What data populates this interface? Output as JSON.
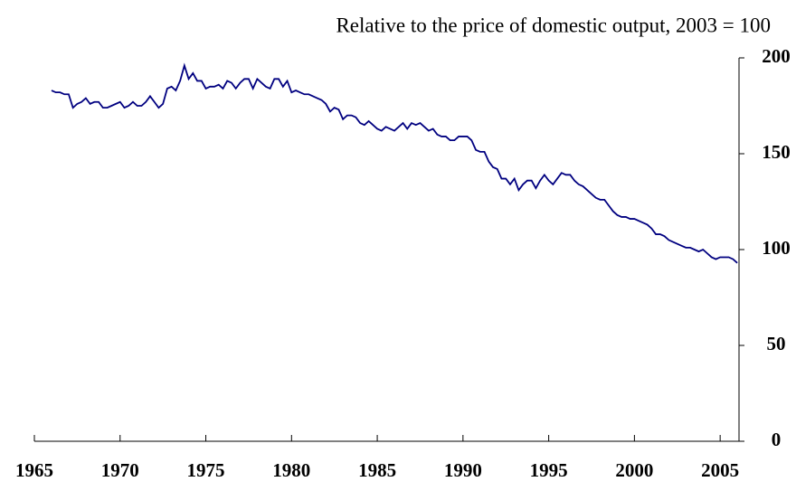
{
  "chart_data": {
    "type": "line",
    "title": "Relative to the price of domestic output,  2003 = 100",
    "x": [
      1966,
      1966.25,
      1966.5,
      1966.75,
      1967,
      1967.25,
      1967.5,
      1967.75,
      1968,
      1968.25,
      1968.5,
      1968.75,
      1969,
      1969.25,
      1969.5,
      1969.75,
      1970,
      1970.25,
      1970.5,
      1970.75,
      1971,
      1971.25,
      1971.5,
      1971.75,
      1972,
      1972.25,
      1972.5,
      1972.75,
      1973,
      1973.25,
      1973.5,
      1973.75,
      1974,
      1974.25,
      1974.5,
      1974.75,
      1975,
      1975.25,
      1975.5,
      1975.75,
      1976,
      1976.25,
      1976.5,
      1976.75,
      1977,
      1977.25,
      1977.5,
      1977.75,
      1978,
      1978.25,
      1978.5,
      1978.75,
      1979,
      1979.25,
      1979.5,
      1979.75,
      1980,
      1980.25,
      1980.5,
      1980.75,
      1981,
      1981.25,
      1981.5,
      1981.75,
      1982,
      1982.25,
      1982.5,
      1982.75,
      1983,
      1983.25,
      1983.5,
      1983.75,
      1984,
      1984.25,
      1984.5,
      1984.75,
      1985,
      1985.25,
      1985.5,
      1985.75,
      1986,
      1986.25,
      1986.5,
      1986.75,
      1987,
      1987.25,
      1987.5,
      1987.75,
      1988,
      1988.25,
      1988.5,
      1988.75,
      1989,
      1989.25,
      1989.5,
      1989.75,
      1990,
      1990.25,
      1990.5,
      1990.75,
      1991,
      1991.25,
      1991.5,
      1991.75,
      1992,
      1992.25,
      1992.5,
      1992.75,
      1993,
      1993.25,
      1993.5,
      1993.75,
      1994,
      1994.25,
      1994.5,
      1994.75,
      1995,
      1995.25,
      1995.5,
      1995.75,
      1996,
      1996.25,
      1996.5,
      1996.75,
      1997,
      1997.25,
      1997.5,
      1997.75,
      1998,
      1998.25,
      1998.5,
      1998.75,
      1999,
      1999.25,
      1999.5,
      1999.75,
      2000,
      2000.25,
      2000.5,
      2000.75,
      2001,
      2001.25,
      2001.5,
      2001.75,
      2002,
      2002.25,
      2002.5,
      2002.75,
      2003,
      2003.25,
      2003.5,
      2003.75,
      2004,
      2004.25,
      2004.5,
      2004.75,
      2005,
      2005.25,
      2005.5,
      2005.75,
      2006
    ],
    "series": [
      {
        "color": "#000080",
        "values": [
          183,
          182,
          182,
          181,
          181,
          174,
          176,
          177,
          179,
          176,
          177,
          177,
          174,
          174,
          175,
          176,
          177,
          174,
          175,
          177,
          175,
          175,
          177,
          180,
          177,
          174,
          176,
          184,
          185,
          183,
          188,
          196,
          189,
          192,
          188,
          188,
          184,
          185,
          185,
          186,
          184,
          188,
          187,
          184,
          187,
          189,
          189,
          184,
          189,
          187,
          185,
          184,
          189,
          189,
          185,
          188,
          182,
          183,
          182,
          181,
          181,
          180,
          179,
          178,
          176,
          172,
          174,
          173,
          168,
          170,
          170,
          169,
          166,
          165,
          167,
          165,
          163,
          162,
          164,
          163,
          162,
          164,
          166,
          163,
          166,
          165,
          166,
          164,
          162,
          163,
          160,
          159,
          159,
          157,
          157,
          159,
          159,
          159,
          157,
          152,
          151,
          151,
          146,
          143,
          142,
          137,
          137,
          134,
          137,
          131,
          134,
          136,
          136,
          132,
          136,
          139,
          136,
          134,
          137,
          140,
          139,
          139,
          136,
          134,
          133,
          131,
          129,
          127,
          126,
          126,
          123,
          120,
          118,
          117,
          117,
          116,
          116,
          115,
          114,
          113,
          111,
          108,
          108,
          107,
          105,
          104,
          103,
          102,
          101,
          101,
          100,
          99,
          100,
          98,
          96,
          95,
          96,
          96,
          96,
          95,
          93
        ]
      }
    ],
    "xlim": [
      1965,
      2006.1
    ],
    "xticks": [
      1965,
      1970,
      1975,
      1980,
      1985,
      1990,
      1995,
      2000,
      2005
    ],
    "ylim": [
      0,
      200
    ],
    "yticks": [
      0,
      50,
      100,
      150,
      200
    ]
  }
}
